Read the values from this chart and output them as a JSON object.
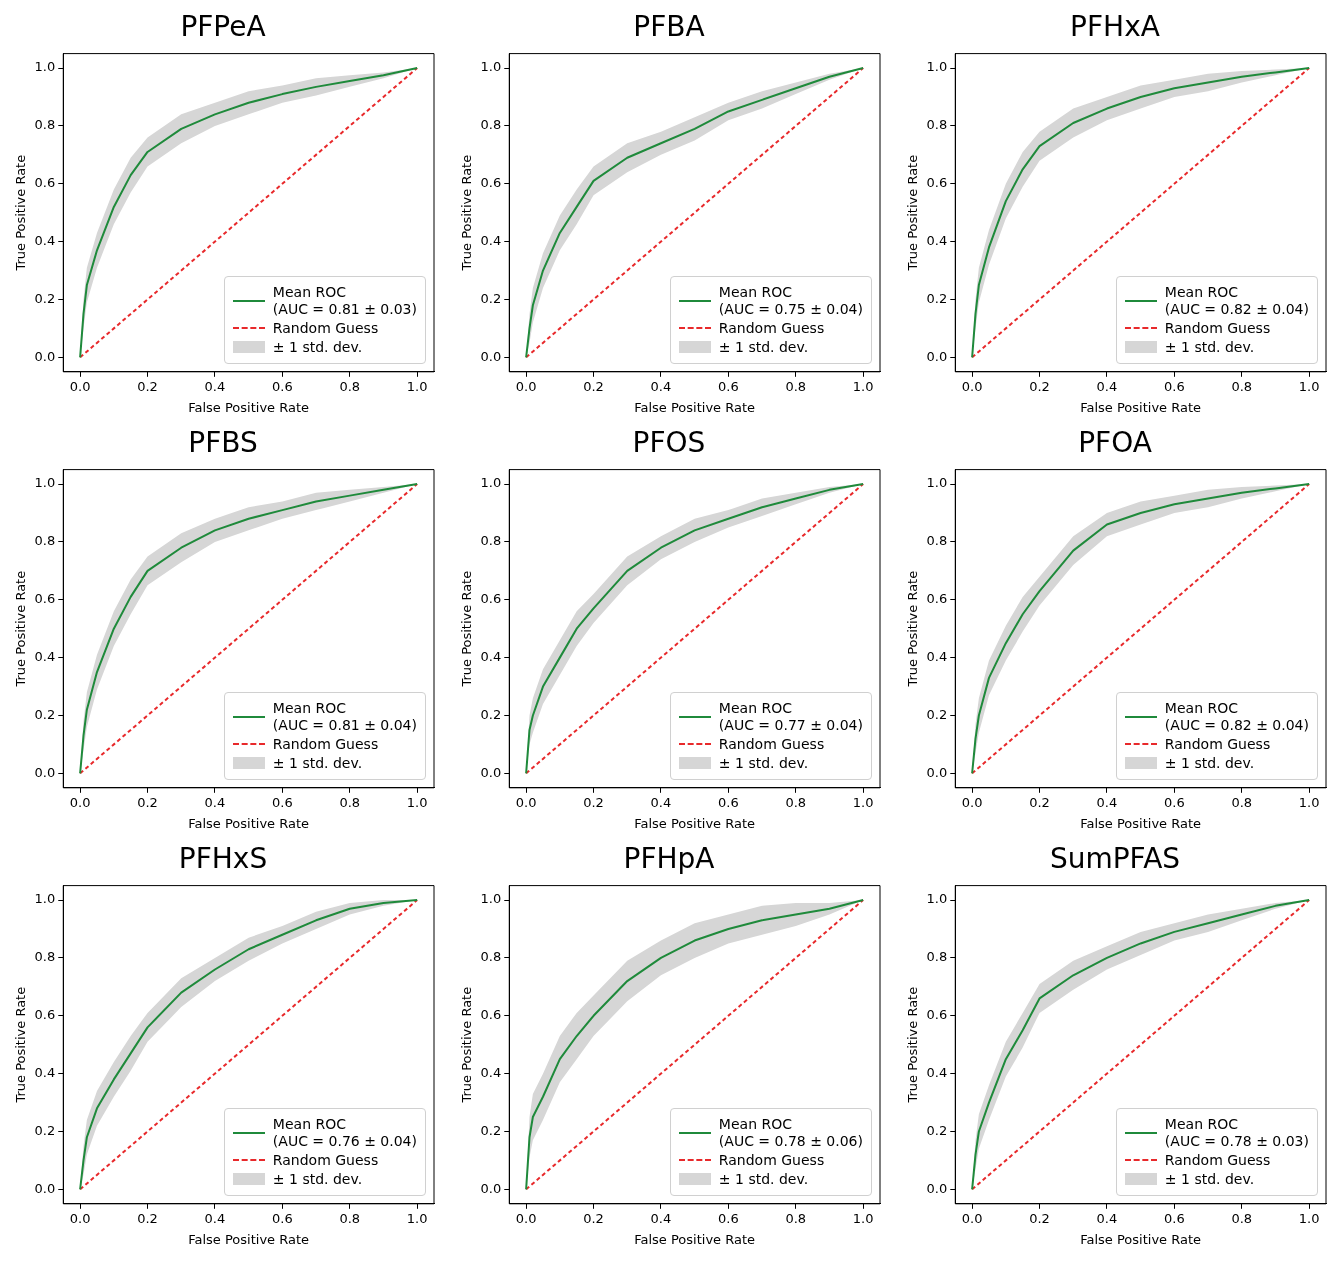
{
  "chart_data": [
    {
      "type": "line",
      "title": "PFPeA",
      "xlabel": "False Positive Rate",
      "ylabel": "True Positive Rate",
      "xlim": [
        -0.05,
        1.05
      ],
      "ylim": [
        -0.05,
        1.05
      ],
      "xticks": [
        {
          "value": 0,
          "label": "0.0"
        },
        {
          "value": 0.2,
          "label": "0.2"
        },
        {
          "value": 0.4,
          "label": "0.4"
        },
        {
          "value": 0.6,
          "label": "0.6"
        },
        {
          "value": 0.8,
          "label": "0.8"
        },
        {
          "value": 1,
          "label": "1.0"
        }
      ],
      "yticks": [
        {
          "value": 0,
          "label": "0.0"
        },
        {
          "value": 0.2,
          "label": "0.2"
        },
        {
          "value": 0.4,
          "label": "0.4"
        },
        {
          "value": 0.6,
          "label": "0.6"
        },
        {
          "value": 0.8,
          "label": "0.8"
        },
        {
          "value": 1,
          "label": "1.0"
        }
      ],
      "grid": false,
      "legend": "bottom right",
      "annotations": [
        "± 1 std. dev."
      ],
      "series": [
        {
          "name": "Mean ROC\n(AUC = 0.81 ± 0.03)",
          "color": "#1f8a3b",
          "x": [
            0,
            0.01,
            0.02,
            0.05,
            0.1,
            0.15,
            0.2,
            0.3,
            0.4,
            0.5,
            0.6,
            0.7,
            0.8,
            0.9,
            1
          ],
          "values": [
            0,
            0.15,
            0.25,
            0.37,
            0.52,
            0.63,
            0.71,
            0.79,
            0.84,
            0.88,
            0.91,
            0.935,
            0.955,
            0.975,
            1
          ],
          "lower": [
            0,
            0.1,
            0.19,
            0.31,
            0.46,
            0.57,
            0.66,
            0.74,
            0.8,
            0.84,
            0.88,
            0.905,
            0.935,
            0.965,
            1
          ],
          "upper": [
            0,
            0.2,
            0.31,
            0.43,
            0.58,
            0.69,
            0.76,
            0.84,
            0.88,
            0.92,
            0.94,
            0.965,
            0.975,
            0.985,
            1
          ]
        },
        {
          "name": "Random Guess",
          "line_style": "dashed",
          "color": "#e8292b",
          "x": [
            0,
            1
          ],
          "values": [
            0,
            1
          ]
        }
      ]
    },
    {
      "type": "line",
      "title": "PFBA",
      "xlabel": "False Positive Rate",
      "ylabel": "True Positive Rate",
      "xlim": [
        -0.05,
        1.05
      ],
      "ylim": [
        -0.05,
        1.05
      ],
      "xticks": [
        {
          "value": 0,
          "label": "0.0"
        },
        {
          "value": 0.2,
          "label": "0.2"
        },
        {
          "value": 0.4,
          "label": "0.4"
        },
        {
          "value": 0.6,
          "label": "0.6"
        },
        {
          "value": 0.8,
          "label": "0.8"
        },
        {
          "value": 1,
          "label": "1.0"
        }
      ],
      "yticks": [
        {
          "value": 0,
          "label": "0.0"
        },
        {
          "value": 0.2,
          "label": "0.2"
        },
        {
          "value": 0.4,
          "label": "0.4"
        },
        {
          "value": 0.6,
          "label": "0.6"
        },
        {
          "value": 0.8,
          "label": "0.8"
        },
        {
          "value": 1,
          "label": "1.0"
        }
      ],
      "grid": false,
      "legend": "bottom right",
      "annotations": [
        "± 1 std. dev."
      ],
      "series": [
        {
          "name": "Mean ROC\n(AUC = 0.75 ± 0.04)",
          "color": "#1f8a3b",
          "x": [
            0,
            0.01,
            0.02,
            0.05,
            0.1,
            0.15,
            0.2,
            0.3,
            0.4,
            0.5,
            0.6,
            0.7,
            0.8,
            0.9,
            1
          ],
          "values": [
            0,
            0.1,
            0.18,
            0.3,
            0.43,
            0.52,
            0.61,
            0.69,
            0.74,
            0.79,
            0.85,
            0.89,
            0.93,
            0.97,
            1
          ],
          "lower": [
            0,
            0.05,
            0.12,
            0.24,
            0.37,
            0.46,
            0.56,
            0.64,
            0.7,
            0.75,
            0.82,
            0.86,
            0.91,
            0.96,
            1
          ],
          "upper": [
            0,
            0.15,
            0.24,
            0.36,
            0.49,
            0.58,
            0.66,
            0.74,
            0.78,
            0.83,
            0.88,
            0.92,
            0.95,
            0.98,
            1
          ]
        },
        {
          "name": "Random Guess",
          "line_style": "dashed",
          "color": "#e8292b",
          "x": [
            0,
            1
          ],
          "values": [
            0,
            1
          ]
        }
      ]
    },
    {
      "type": "line",
      "title": "PFHxA",
      "xlabel": "False Positive Rate",
      "ylabel": "True Positive Rate",
      "xlim": [
        -0.05,
        1.05
      ],
      "ylim": [
        -0.05,
        1.05
      ],
      "xticks": [
        {
          "value": 0,
          "label": "0.0"
        },
        {
          "value": 0.2,
          "label": "0.2"
        },
        {
          "value": 0.4,
          "label": "0.4"
        },
        {
          "value": 0.6,
          "label": "0.6"
        },
        {
          "value": 0.8,
          "label": "0.8"
        },
        {
          "value": 1,
          "label": "1.0"
        }
      ],
      "yticks": [
        {
          "value": 0,
          "label": "0.0"
        },
        {
          "value": 0.2,
          "label": "0.2"
        },
        {
          "value": 0.4,
          "label": "0.4"
        },
        {
          "value": 0.6,
          "label": "0.6"
        },
        {
          "value": 0.8,
          "label": "0.8"
        },
        {
          "value": 1,
          "label": "1.0"
        }
      ],
      "grid": false,
      "legend": "bottom right",
      "annotations": [
        "± 1 std. dev."
      ],
      "series": [
        {
          "name": "Mean ROC\n(AUC = 0.82 ± 0.04)",
          "color": "#1f8a3b",
          "x": [
            0,
            0.01,
            0.02,
            0.05,
            0.1,
            0.15,
            0.2,
            0.3,
            0.4,
            0.5,
            0.6,
            0.7,
            0.8,
            0.9,
            1
          ],
          "values": [
            0,
            0.15,
            0.25,
            0.38,
            0.54,
            0.65,
            0.73,
            0.81,
            0.86,
            0.9,
            0.93,
            0.95,
            0.97,
            0.985,
            1
          ],
          "lower": [
            0,
            0.1,
            0.19,
            0.32,
            0.48,
            0.59,
            0.68,
            0.76,
            0.82,
            0.86,
            0.9,
            0.92,
            0.95,
            0.975,
            1
          ],
          "upper": [
            0,
            0.2,
            0.31,
            0.44,
            0.6,
            0.71,
            0.78,
            0.86,
            0.9,
            0.94,
            0.96,
            0.98,
            0.99,
            0.995,
            1
          ]
        },
        {
          "name": "Random Guess",
          "line_style": "dashed",
          "color": "#e8292b",
          "x": [
            0,
            1
          ],
          "values": [
            0,
            1
          ]
        }
      ]
    },
    {
      "type": "line",
      "title": "PFBS",
      "xlabel": "False Positive Rate",
      "ylabel": "True Positive Rate",
      "xlim": [
        -0.05,
        1.05
      ],
      "ylim": [
        -0.05,
        1.05
      ],
      "xticks": [
        {
          "value": 0,
          "label": "0.0"
        },
        {
          "value": 0.2,
          "label": "0.2"
        },
        {
          "value": 0.4,
          "label": "0.4"
        },
        {
          "value": 0.6,
          "label": "0.6"
        },
        {
          "value": 0.8,
          "label": "0.8"
        },
        {
          "value": 1,
          "label": "1.0"
        }
      ],
      "yticks": [
        {
          "value": 0,
          "label": "0.0"
        },
        {
          "value": 0.2,
          "label": "0.2"
        },
        {
          "value": 0.4,
          "label": "0.4"
        },
        {
          "value": 0.6,
          "label": "0.6"
        },
        {
          "value": 0.8,
          "label": "0.8"
        },
        {
          "value": 1,
          "label": "1.0"
        }
      ],
      "grid": false,
      "legend": "bottom right",
      "annotations": [
        "± 1 std. dev."
      ],
      "series": [
        {
          "name": "Mean ROC\n(AUC = 0.81 ± 0.04)",
          "color": "#1f8a3b",
          "x": [
            0,
            0.01,
            0.02,
            0.05,
            0.1,
            0.15,
            0.2,
            0.3,
            0.4,
            0.5,
            0.6,
            0.7,
            0.8,
            0.9,
            1
          ],
          "values": [
            0,
            0.13,
            0.22,
            0.35,
            0.5,
            0.61,
            0.7,
            0.78,
            0.84,
            0.88,
            0.91,
            0.94,
            0.96,
            0.98,
            1
          ],
          "lower": [
            0,
            0.08,
            0.16,
            0.29,
            0.44,
            0.55,
            0.65,
            0.73,
            0.8,
            0.84,
            0.88,
            0.91,
            0.94,
            0.97,
            1
          ],
          "upper": [
            0,
            0.18,
            0.28,
            0.41,
            0.56,
            0.67,
            0.75,
            0.83,
            0.88,
            0.92,
            0.94,
            0.97,
            0.98,
            0.99,
            1
          ]
        },
        {
          "name": "Random Guess",
          "line_style": "dashed",
          "color": "#e8292b",
          "x": [
            0,
            1
          ],
          "values": [
            0,
            1
          ]
        }
      ]
    },
    {
      "type": "line",
      "title": "PFOS",
      "xlabel": "False Positive Rate",
      "ylabel": "True Positive Rate",
      "xlim": [
        -0.05,
        1.05
      ],
      "ylim": [
        -0.05,
        1.05
      ],
      "xticks": [
        {
          "value": 0,
          "label": "0.0"
        },
        {
          "value": 0.2,
          "label": "0.2"
        },
        {
          "value": 0.4,
          "label": "0.4"
        },
        {
          "value": 0.6,
          "label": "0.6"
        },
        {
          "value": 0.8,
          "label": "0.8"
        },
        {
          "value": 1,
          "label": "1.0"
        }
      ],
      "yticks": [
        {
          "value": 0,
          "label": "0.0"
        },
        {
          "value": 0.2,
          "label": "0.2"
        },
        {
          "value": 0.4,
          "label": "0.4"
        },
        {
          "value": 0.6,
          "label": "0.6"
        },
        {
          "value": 0.8,
          "label": "0.8"
        },
        {
          "value": 1,
          "label": "1.0"
        }
      ],
      "grid": false,
      "legend": "bottom right",
      "annotations": [
        "± 1 std. dev."
      ],
      "series": [
        {
          "name": "Mean ROC\n(AUC = 0.77 ± 0.04)",
          "color": "#1f8a3b",
          "x": [
            0,
            0.01,
            0.02,
            0.05,
            0.1,
            0.15,
            0.2,
            0.3,
            0.4,
            0.5,
            0.6,
            0.7,
            0.8,
            0.9,
            1
          ],
          "values": [
            0,
            0.15,
            0.2,
            0.3,
            0.4,
            0.5,
            0.57,
            0.7,
            0.78,
            0.84,
            0.88,
            0.92,
            0.95,
            0.98,
            1
          ],
          "lower": [
            0,
            0.1,
            0.14,
            0.24,
            0.34,
            0.44,
            0.52,
            0.65,
            0.74,
            0.8,
            0.85,
            0.89,
            0.93,
            0.97,
            1
          ],
          "upper": [
            0,
            0.2,
            0.26,
            0.36,
            0.46,
            0.56,
            0.62,
            0.75,
            0.82,
            0.88,
            0.91,
            0.95,
            0.97,
            0.99,
            1
          ]
        },
        {
          "name": "Random Guess",
          "line_style": "dashed",
          "color": "#e8292b",
          "x": [
            0,
            1
          ],
          "values": [
            0,
            1
          ]
        }
      ]
    },
    {
      "type": "line",
      "title": "PFOA",
      "xlabel": "False Positive Rate",
      "ylabel": "True Positive Rate",
      "xlim": [
        -0.05,
        1.05
      ],
      "ylim": [
        -0.05,
        1.05
      ],
      "xticks": [
        {
          "value": 0,
          "label": "0.0"
        },
        {
          "value": 0.2,
          "label": "0.2"
        },
        {
          "value": 0.4,
          "label": "0.4"
        },
        {
          "value": 0.6,
          "label": "0.6"
        },
        {
          "value": 0.8,
          "label": "0.8"
        },
        {
          "value": 1,
          "label": "1.0"
        }
      ],
      "yticks": [
        {
          "value": 0,
          "label": "0.0"
        },
        {
          "value": 0.2,
          "label": "0.2"
        },
        {
          "value": 0.4,
          "label": "0.4"
        },
        {
          "value": 0.6,
          "label": "0.6"
        },
        {
          "value": 0.8,
          "label": "0.8"
        },
        {
          "value": 1,
          "label": "1.0"
        }
      ],
      "grid": false,
      "legend": "bottom right",
      "annotations": [
        "± 1 std. dev."
      ],
      "series": [
        {
          "name": "Mean ROC\n(AUC = 0.82 ± 0.04)",
          "color": "#1f8a3b",
          "x": [
            0,
            0.01,
            0.02,
            0.05,
            0.1,
            0.15,
            0.2,
            0.3,
            0.4,
            0.5,
            0.6,
            0.7,
            0.8,
            0.9,
            1
          ],
          "values": [
            0,
            0.12,
            0.2,
            0.33,
            0.45,
            0.55,
            0.63,
            0.77,
            0.86,
            0.9,
            0.93,
            0.95,
            0.97,
            0.985,
            1
          ],
          "lower": [
            0,
            0.07,
            0.14,
            0.27,
            0.39,
            0.49,
            0.58,
            0.72,
            0.82,
            0.86,
            0.9,
            0.92,
            0.95,
            0.975,
            1
          ],
          "upper": [
            0,
            0.17,
            0.26,
            0.39,
            0.51,
            0.61,
            0.68,
            0.82,
            0.9,
            0.94,
            0.96,
            0.98,
            0.99,
            0.995,
            1
          ]
        },
        {
          "name": "Random Guess",
          "line_style": "dashed",
          "color": "#e8292b",
          "x": [
            0,
            1
          ],
          "values": [
            0,
            1
          ]
        }
      ]
    },
    {
      "type": "line",
      "title": "PFHxS",
      "xlabel": "False Positive Rate",
      "ylabel": "True Positive Rate",
      "xlim": [
        -0.05,
        1.05
      ],
      "ylim": [
        -0.05,
        1.05
      ],
      "xticks": [
        {
          "value": 0,
          "label": "0.0"
        },
        {
          "value": 0.2,
          "label": "0.2"
        },
        {
          "value": 0.4,
          "label": "0.4"
        },
        {
          "value": 0.6,
          "label": "0.6"
        },
        {
          "value": 0.8,
          "label": "0.8"
        },
        {
          "value": 1,
          "label": "1.0"
        }
      ],
      "yticks": [
        {
          "value": 0,
          "label": "0.0"
        },
        {
          "value": 0.2,
          "label": "0.2"
        },
        {
          "value": 0.4,
          "label": "0.4"
        },
        {
          "value": 0.6,
          "label": "0.6"
        },
        {
          "value": 0.8,
          "label": "0.8"
        },
        {
          "value": 1,
          "label": "1.0"
        }
      ],
      "grid": false,
      "legend": "bottom right",
      "annotations": [
        "± 1 std. dev."
      ],
      "series": [
        {
          "name": "Mean ROC\n(AUC = 0.76 ± 0.04)",
          "color": "#1f8a3b",
          "x": [
            0,
            0.01,
            0.02,
            0.05,
            0.1,
            0.15,
            0.2,
            0.3,
            0.4,
            0.5,
            0.6,
            0.7,
            0.8,
            0.9,
            1
          ],
          "values": [
            0,
            0.1,
            0.18,
            0.28,
            0.38,
            0.47,
            0.56,
            0.68,
            0.76,
            0.83,
            0.88,
            0.93,
            0.97,
            0.99,
            1
          ],
          "lower": [
            0,
            0.05,
            0.12,
            0.22,
            0.32,
            0.41,
            0.51,
            0.63,
            0.72,
            0.79,
            0.85,
            0.9,
            0.95,
            0.98,
            1
          ],
          "upper": [
            0,
            0.15,
            0.24,
            0.34,
            0.44,
            0.53,
            0.61,
            0.73,
            0.8,
            0.87,
            0.91,
            0.96,
            0.99,
            1,
            1
          ]
        },
        {
          "name": "Random Guess",
          "line_style": "dashed",
          "color": "#e8292b",
          "x": [
            0,
            1
          ],
          "values": [
            0,
            1
          ]
        }
      ]
    },
    {
      "type": "line",
      "title": "PFHpA",
      "xlabel": "False Positive Rate",
      "ylabel": "True Positive Rate",
      "xlim": [
        -0.05,
        1.05
      ],
      "ylim": [
        -0.05,
        1.05
      ],
      "xticks": [
        {
          "value": 0,
          "label": "0.0"
        },
        {
          "value": 0.2,
          "label": "0.2"
        },
        {
          "value": 0.4,
          "label": "0.4"
        },
        {
          "value": 0.6,
          "label": "0.6"
        },
        {
          "value": 0.8,
          "label": "0.8"
        },
        {
          "value": 1,
          "label": "1.0"
        }
      ],
      "yticks": [
        {
          "value": 0,
          "label": "0.0"
        },
        {
          "value": 0.2,
          "label": "0.2"
        },
        {
          "value": 0.4,
          "label": "0.4"
        },
        {
          "value": 0.6,
          "label": "0.6"
        },
        {
          "value": 0.8,
          "label": "0.8"
        },
        {
          "value": 1,
          "label": "1.0"
        }
      ],
      "grid": false,
      "legend": "bottom right",
      "annotations": [
        "± 1 std. dev."
      ],
      "series": [
        {
          "name": "Mean ROC\n(AUC = 0.78 ± 0.06)",
          "color": "#1f8a3b",
          "x": [
            0,
            0.01,
            0.02,
            0.05,
            0.1,
            0.15,
            0.2,
            0.3,
            0.4,
            0.5,
            0.6,
            0.7,
            0.8,
            0.9,
            1
          ],
          "values": [
            0,
            0.18,
            0.25,
            0.32,
            0.45,
            0.53,
            0.6,
            0.72,
            0.8,
            0.86,
            0.9,
            0.93,
            0.95,
            0.97,
            1
          ],
          "lower": [
            0,
            0.11,
            0.17,
            0.24,
            0.37,
            0.45,
            0.53,
            0.65,
            0.74,
            0.8,
            0.85,
            0.88,
            0.91,
            0.95,
            1
          ],
          "upper": [
            0,
            0.25,
            0.33,
            0.4,
            0.53,
            0.61,
            0.67,
            0.79,
            0.86,
            0.92,
            0.95,
            0.98,
            0.99,
            0.99,
            1
          ]
        },
        {
          "name": "Random Guess",
          "line_style": "dashed",
          "color": "#e8292b",
          "x": [
            0,
            1
          ],
          "values": [
            0,
            1
          ]
        }
      ]
    },
    {
      "type": "line",
      "title": "SumPFAS",
      "xlabel": "False Positive Rate",
      "ylabel": "True Positive Rate",
      "xlim": [
        -0.05,
        1.05
      ],
      "ylim": [
        -0.05,
        1.05
      ],
      "xticks": [
        {
          "value": 0,
          "label": "0.0"
        },
        {
          "value": 0.2,
          "label": "0.2"
        },
        {
          "value": 0.4,
          "label": "0.4"
        },
        {
          "value": 0.6,
          "label": "0.6"
        },
        {
          "value": 0.8,
          "label": "0.8"
        },
        {
          "value": 1,
          "label": "1.0"
        }
      ],
      "yticks": [
        {
          "value": 0,
          "label": "0.0"
        },
        {
          "value": 0.2,
          "label": "0.2"
        },
        {
          "value": 0.4,
          "label": "0.4"
        },
        {
          "value": 0.6,
          "label": "0.6"
        },
        {
          "value": 0.8,
          "label": "0.8"
        },
        {
          "value": 1,
          "label": "1.0"
        }
      ],
      "grid": false,
      "legend": "bottom right",
      "annotations": [
        "± 1 std. dev."
      ],
      "series": [
        {
          "name": "Mean ROC\n(AUC = 0.78 ± 0.03)",
          "color": "#1f8a3b",
          "x": [
            0,
            0.01,
            0.02,
            0.05,
            0.1,
            0.15,
            0.2,
            0.3,
            0.4,
            0.5,
            0.6,
            0.7,
            0.8,
            0.9,
            1
          ],
          "values": [
            0,
            0.12,
            0.2,
            0.3,
            0.45,
            0.55,
            0.66,
            0.74,
            0.8,
            0.85,
            0.89,
            0.92,
            0.95,
            0.98,
            1
          ],
          "lower": [
            0,
            0.07,
            0.14,
            0.24,
            0.39,
            0.49,
            0.61,
            0.69,
            0.76,
            0.81,
            0.86,
            0.89,
            0.93,
            0.97,
            1
          ],
          "upper": [
            0,
            0.17,
            0.26,
            0.36,
            0.51,
            0.61,
            0.71,
            0.79,
            0.84,
            0.89,
            0.92,
            0.95,
            0.97,
            0.99,
            1
          ]
        },
        {
          "name": "Random Guess",
          "line_style": "dashed",
          "color": "#e8292b",
          "x": [
            0,
            1
          ],
          "values": [
            0,
            1
          ]
        }
      ]
    }
  ]
}
